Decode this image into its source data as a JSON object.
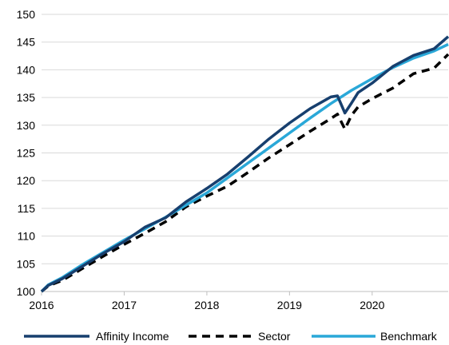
{
  "chart_data": {
    "type": "line",
    "title": "",
    "xlabel": "",
    "ylabel": "",
    "xlim": [
      2016.0,
      2020.92
    ],
    "ylim": [
      100,
      150
    ],
    "y_ticks": [
      100,
      105,
      110,
      115,
      120,
      125,
      130,
      135,
      140,
      145,
      150
    ],
    "x_ticks": [
      2016,
      2017,
      2018,
      2019,
      2020
    ],
    "x_tick_labels": [
      "2016",
      "2017",
      "2018",
      "2019",
      "2020"
    ],
    "grid": "horizontal",
    "legend_position": "bottom",
    "series": [
      {
        "name": "Affinity Income",
        "color": "#173f6e",
        "dash": "solid",
        "points": [
          [
            2016.0,
            100.0
          ],
          [
            2016.08,
            101.1
          ],
          [
            2016.25,
            102.3
          ],
          [
            2016.5,
            104.6
          ],
          [
            2016.75,
            106.9
          ],
          [
            2017.0,
            109.0
          ],
          [
            2017.25,
            111.6
          ],
          [
            2017.5,
            113.3
          ],
          [
            2017.75,
            116.2
          ],
          [
            2018.0,
            118.6
          ],
          [
            2018.25,
            121.2
          ],
          [
            2018.5,
            124.3
          ],
          [
            2018.75,
            127.5
          ],
          [
            2019.0,
            130.4
          ],
          [
            2019.25,
            133.0
          ],
          [
            2019.5,
            135.1
          ],
          [
            2019.58,
            135.3
          ],
          [
            2019.67,
            132.2
          ],
          [
            2019.75,
            134.0
          ],
          [
            2019.83,
            135.9
          ],
          [
            2020.0,
            137.6
          ],
          [
            2020.25,
            140.6
          ],
          [
            2020.5,
            142.6
          ],
          [
            2020.75,
            143.8
          ],
          [
            2020.92,
            146.0
          ]
        ]
      },
      {
        "name": "Sector",
        "color": "#000000",
        "dash": "dashed",
        "points": [
          [
            2016.0,
            100.0
          ],
          [
            2016.08,
            101.0
          ],
          [
            2016.25,
            102.0
          ],
          [
            2016.5,
            104.2
          ],
          [
            2016.75,
            106.4
          ],
          [
            2017.0,
            108.5
          ],
          [
            2017.25,
            110.5
          ],
          [
            2017.5,
            112.6
          ],
          [
            2017.75,
            115.3
          ],
          [
            2018.0,
            117.2
          ],
          [
            2018.25,
            119.0
          ],
          [
            2018.5,
            121.5
          ],
          [
            2018.75,
            124.1
          ],
          [
            2019.0,
            126.5
          ],
          [
            2019.25,
            128.9
          ],
          [
            2019.5,
            131.2
          ],
          [
            2019.58,
            132.0
          ],
          [
            2019.67,
            129.3
          ],
          [
            2019.75,
            131.8
          ],
          [
            2019.83,
            133.3
          ],
          [
            2020.0,
            134.8
          ],
          [
            2020.25,
            136.7
          ],
          [
            2020.5,
            139.3
          ],
          [
            2020.75,
            140.3
          ],
          [
            2020.92,
            142.8
          ]
        ]
      },
      {
        "name": "Benchmark",
        "color": "#2aa8d8",
        "dash": "solid",
        "points": [
          [
            2016.0,
            100.0
          ],
          [
            2016.08,
            101.2
          ],
          [
            2016.25,
            102.5
          ],
          [
            2016.5,
            104.9
          ],
          [
            2016.75,
            107.1
          ],
          [
            2017.0,
            109.3
          ],
          [
            2017.25,
            111.3
          ],
          [
            2017.5,
            113.4
          ],
          [
            2017.75,
            115.6
          ],
          [
            2018.0,
            117.8
          ],
          [
            2018.25,
            120.5
          ],
          [
            2018.5,
            123.2
          ],
          [
            2018.75,
            125.9
          ],
          [
            2019.0,
            128.6
          ],
          [
            2019.25,
            131.3
          ],
          [
            2019.5,
            133.9
          ],
          [
            2019.75,
            136.3
          ],
          [
            2020.0,
            138.4
          ],
          [
            2020.25,
            140.4
          ],
          [
            2020.5,
            142.1
          ],
          [
            2020.75,
            143.4
          ],
          [
            2020.92,
            144.6
          ]
        ]
      }
    ]
  }
}
